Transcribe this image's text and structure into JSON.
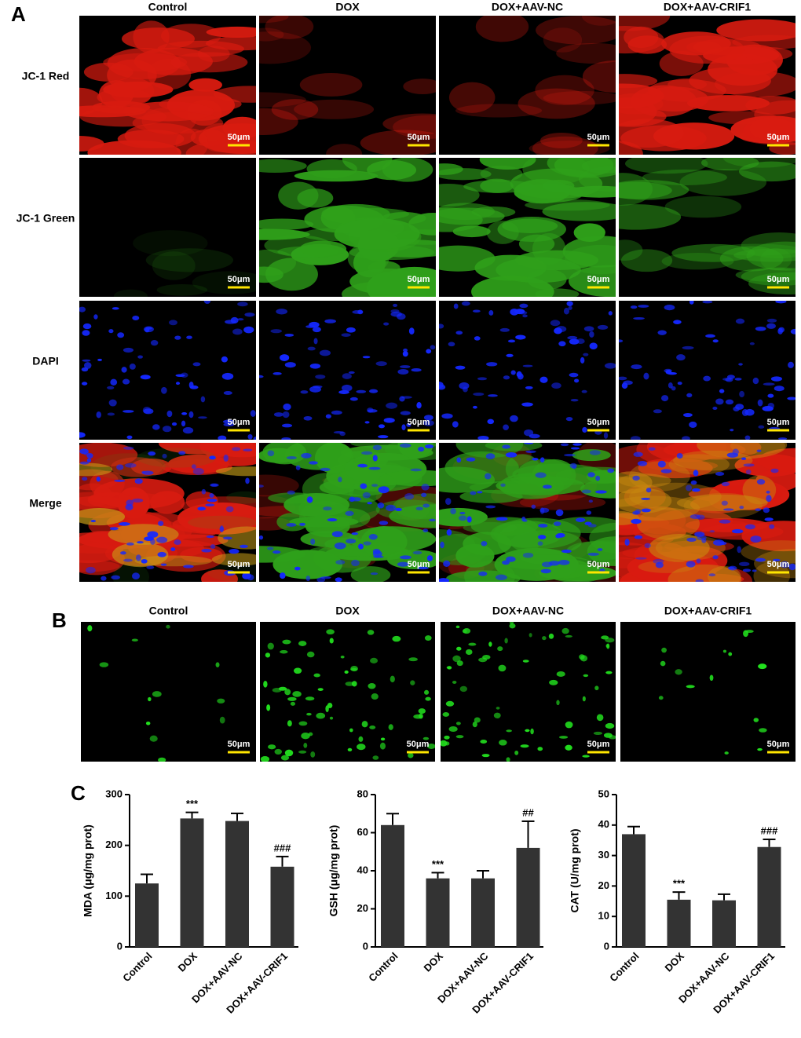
{
  "panel_a": {
    "label": "A",
    "columns": [
      "Control",
      "DOX",
      "DOX+AAV-NC",
      "DOX+AAV-CRIF1"
    ],
    "rows": [
      "JC-1 Red",
      "JC-1 Green",
      "DAPI",
      "Merge"
    ],
    "scale_bar": "50μm"
  },
  "panel_b": {
    "label": "B",
    "columns": [
      "Control",
      "DOX",
      "DOX+AAV-NC",
      "DOX+AAV-CRIF1"
    ],
    "scale_bar": "50μm"
  },
  "panel_c": {
    "label": "C"
  },
  "chart_data": [
    {
      "type": "bar",
      "y_label": "MDA (μg/mg prot)",
      "categories": [
        "Control",
        "DOX",
        "DOX+AAV-NC",
        "DOX+AAV-CRIF1"
      ],
      "series": [
        {
          "color": "#333333",
          "values": [
            125,
            253,
            248,
            158
          ],
          "errors": [
            18,
            12,
            15,
            20
          ]
        }
      ],
      "annotations": [
        null,
        "***",
        null,
        "###"
      ],
      "ylim": [
        0,
        300
      ],
      "yticks": [
        0,
        100,
        200,
        300
      ]
    },
    {
      "type": "bar",
      "y_label": "GSH (μg/mg prot)",
      "categories": [
        "Control",
        "DOX",
        "DOX+AAV-NC",
        "DOX+AAV-CRIF1"
      ],
      "series": [
        {
          "color": "#333333",
          "values": [
            64,
            36,
            36,
            52
          ],
          "errors": [
            6,
            3,
            4,
            14
          ]
        }
      ],
      "annotations": [
        null,
        "***",
        null,
        "##"
      ],
      "ylim": [
        0,
        80
      ],
      "yticks": [
        0,
        20,
        40,
        60,
        80
      ]
    },
    {
      "type": "bar",
      "y_label": "CAT (U/mg prot)",
      "categories": [
        "Control",
        "DOX",
        "DOX+AAV-NC",
        "DOX+AAV-CRIF1"
      ],
      "series": [
        {
          "color": "#333333",
          "values": [
            37,
            15.5,
            15.3,
            32.8
          ],
          "errors": [
            2.5,
            2.5,
            2,
            2.5
          ]
        }
      ],
      "annotations": [
        null,
        "***",
        null,
        "###"
      ],
      "ylim": [
        0,
        50
      ],
      "yticks": [
        0,
        10,
        20,
        30,
        40,
        50
      ]
    }
  ]
}
